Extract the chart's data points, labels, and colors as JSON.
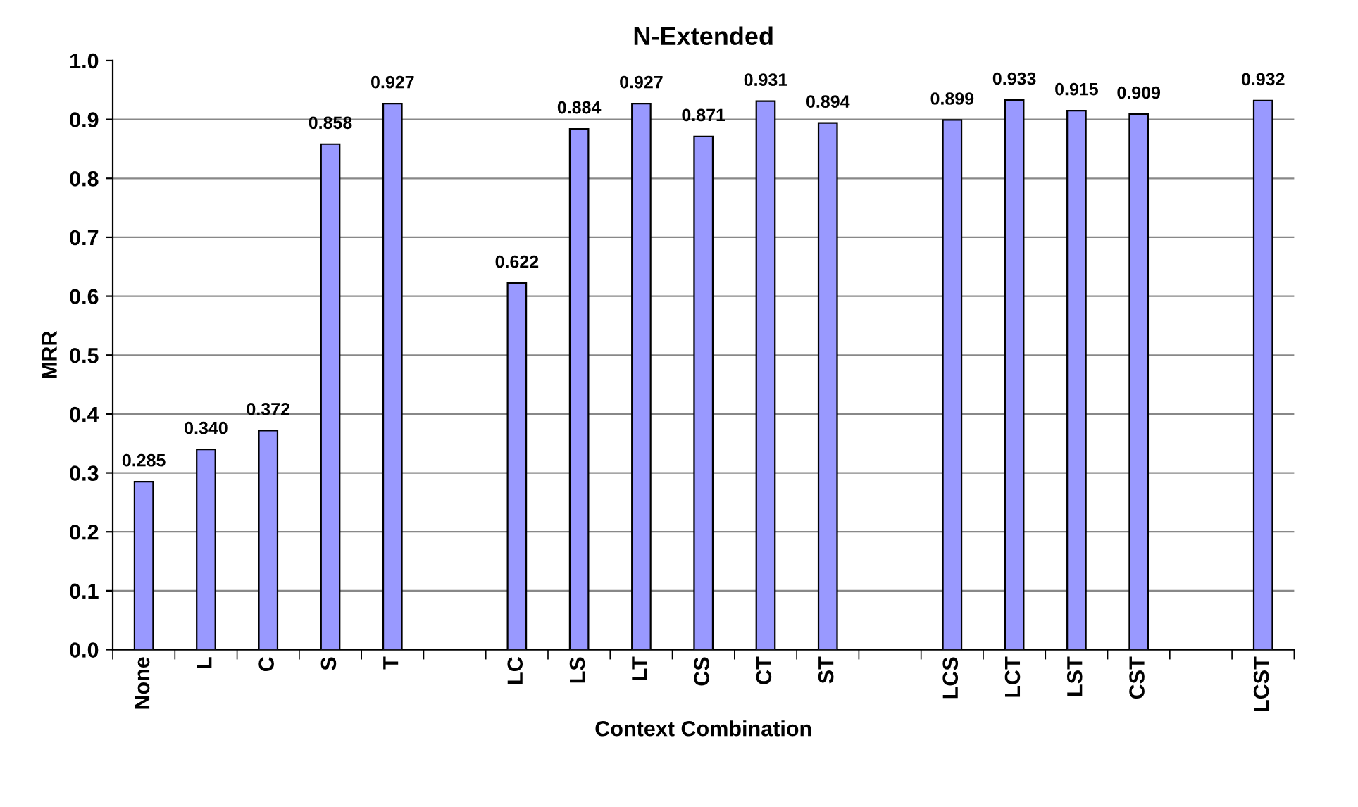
{
  "chart_data": {
    "type": "bar",
    "title": "N-Extended",
    "xlabel": "Context Combination",
    "ylabel": "MRR",
    "categories": [
      "None",
      "L",
      "C",
      "S",
      "T",
      null,
      "LC",
      "LS",
      "LT",
      "CS",
      "CT",
      "ST",
      null,
      "LCS",
      "LCT",
      "LST",
      "CST",
      null,
      "LCST"
    ],
    "values": [
      0.285,
      0.34,
      0.372,
      0.858,
      0.927,
      null,
      0.622,
      0.884,
      0.927,
      0.871,
      0.931,
      0.894,
      null,
      0.899,
      0.933,
      0.915,
      0.909,
      null,
      0.932
    ],
    "value_labels": [
      "0.285",
      "0.340",
      "0.372",
      "0.858",
      "0.927",
      null,
      "0.622",
      "0.884",
      "0.927",
      "0.871",
      "0.931",
      "0.894",
      null,
      "0.899",
      "0.933",
      "0.915",
      "0.909",
      null,
      "0.932"
    ],
    "color": "#9999ff",
    "ylim": [
      0,
      1.0
    ],
    "yticks": [
      {
        "value": 0,
        "label": "0.0"
      },
      {
        "value": 0.1,
        "label": "0.1"
      },
      {
        "value": 0.2,
        "label": "0.2"
      },
      {
        "value": 0.3,
        "label": "0.3"
      },
      {
        "value": 0.4,
        "label": "0.4"
      },
      {
        "value": 0.5,
        "label": "0.5"
      },
      {
        "value": 0.6,
        "label": "0.6"
      },
      {
        "value": 0.7,
        "label": "0.7"
      },
      {
        "value": 0.8,
        "label": "0.8"
      },
      {
        "value": 0.9,
        "label": "0.9"
      },
      {
        "value": 1.0,
        "label": "1.0"
      }
    ],
    "grid": "y"
  }
}
